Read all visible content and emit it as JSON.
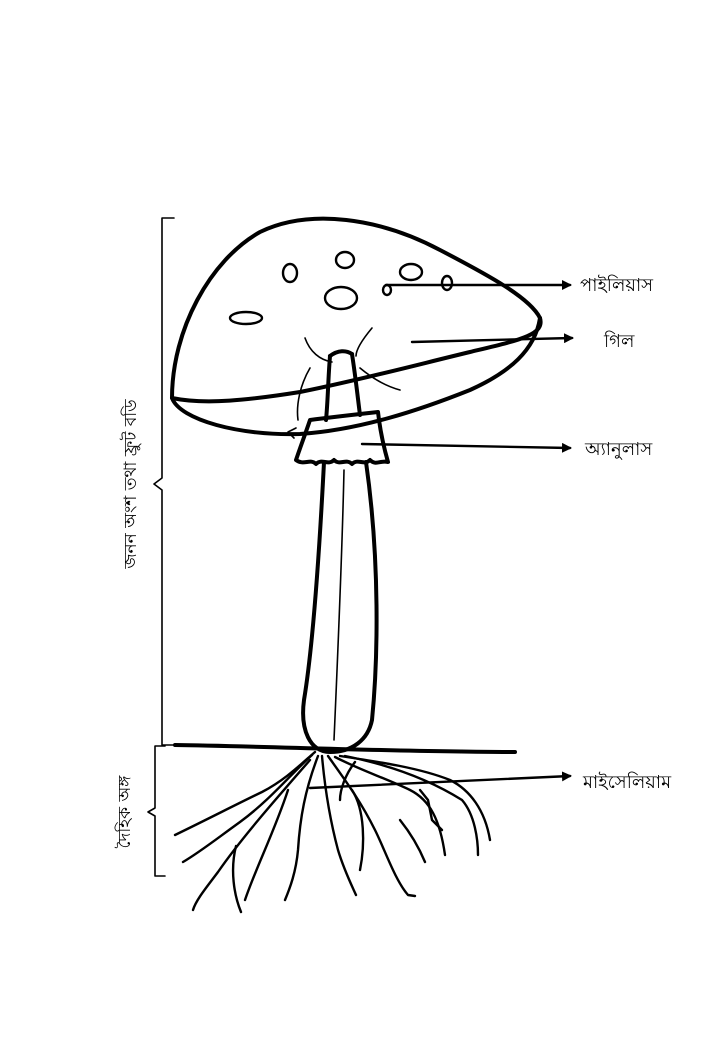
{
  "labels": {
    "pileus": "পাইলিয়াস",
    "gill": "গিল",
    "annulus": "অ্যানুলাস",
    "mycelium": "মাইসেলিয়াম"
  },
  "brackets": {
    "reproductive": "জনন অংশ তথা ফ্রুট বডি",
    "vegetative": "দৈহিক অঙ্গ"
  }
}
